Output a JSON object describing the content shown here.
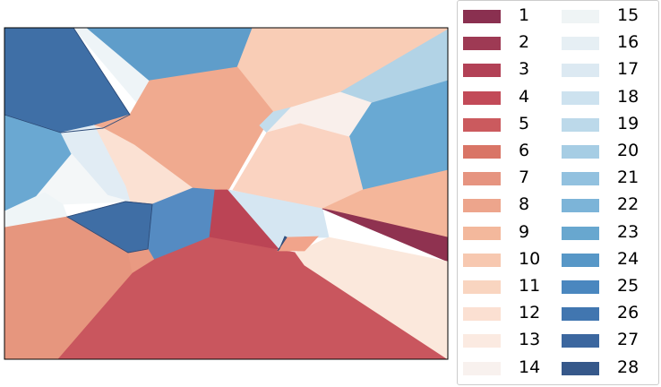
{
  "chart_data": {
    "type": "voronoi",
    "title": "",
    "xlabel": "",
    "ylabel": "",
    "grid": false,
    "axes_ticks": false,
    "legend": {
      "placement": "right",
      "columns": 2,
      "entries": [
        {
          "label": "1",
          "color": "#8a3050"
        },
        {
          "label": "2",
          "color": "#9e3a54"
        },
        {
          "label": "3",
          "color": "#b24156"
        },
        {
          "label": "4",
          "color": "#c24a58"
        },
        {
          "label": "5",
          "color": "#cb5a5e"
        },
        {
          "label": "6",
          "color": "#d97566"
        },
        {
          "label": "7",
          "color": "#e69480"
        },
        {
          "label": "8",
          "color": "#eda58c"
        },
        {
          "label": "9",
          "color": "#f3b89c"
        },
        {
          "label": "10",
          "color": "#f7c8b0"
        },
        {
          "label": "11",
          "color": "#f9d5c0"
        },
        {
          "label": "12",
          "color": "#fbe0d2"
        },
        {
          "label": "13",
          "color": "#fbeae1"
        },
        {
          "label": "14",
          "color": "#f8f1ee"
        },
        {
          "label": "15",
          "color": "#eff4f5"
        },
        {
          "label": "16",
          "color": "#e6eff4"
        },
        {
          "label": "17",
          "color": "#dce9f2"
        },
        {
          "label": "18",
          "color": "#cde2ef"
        },
        {
          "label": "19",
          "color": "#bcd9ea"
        },
        {
          "label": "20",
          "color": "#a6cde4"
        },
        {
          "label": "21",
          "color": "#92c1df"
        },
        {
          "label": "22",
          "color": "#7cb4d8"
        },
        {
          "label": "23",
          "color": "#68a7cf"
        },
        {
          "label": "24",
          "color": "#5797c7"
        },
        {
          "label": "25",
          "color": "#4a87bf"
        },
        {
          "label": "26",
          "color": "#4176b0"
        },
        {
          "label": "27",
          "color": "#3c679f"
        },
        {
          "label": "28",
          "color": "#36588a"
        }
      ]
    },
    "regions": [
      {
        "value": 27,
        "color": "#3f6fa6"
      },
      {
        "value": 16,
        "color": "#eef4f7"
      },
      {
        "value": 23,
        "color": "#5f9dca"
      },
      {
        "value": 11,
        "color": "#f9cdb6"
      },
      {
        "value": 19,
        "color": "#b2d3e6"
      },
      {
        "value": 8,
        "color": "#f0aa8f"
      },
      {
        "value": 24,
        "color": "#6aa8d2"
      },
      {
        "value": 19,
        "color": "#c2dcec"
      },
      {
        "value": 14,
        "color": "#f9efeb"
      },
      {
        "value": 24,
        "color": "#69a9d3"
      },
      {
        "value": 10,
        "color": "#fad3c1"
      },
      {
        "value": 13,
        "color": "#fbe1d3"
      },
      {
        "value": 17,
        "color": "#e1ecf4"
      },
      {
        "value": 20,
        "color": "#9fc8e2"
      },
      {
        "value": 15,
        "color": "#f4f7f8"
      },
      {
        "value": 16,
        "color": "#eff5f7"
      },
      {
        "value": 27,
        "color": "#3f6ea5"
      },
      {
        "value": 25,
        "color": "#558bc2"
      },
      {
        "value": 3,
        "color": "#bb4455"
      },
      {
        "value": 18,
        "color": "#d5e6f2"
      },
      {
        "value": 28,
        "color": "#36588a"
      },
      {
        "value": 9,
        "color": "#f4b69a"
      },
      {
        "value": 1,
        "color": "#8f3250"
      },
      {
        "value": 7,
        "color": "#e6967e"
      },
      {
        "value": 8,
        "color": "#e99a82"
      },
      {
        "value": 5,
        "color": "#c9565e"
      },
      {
        "value": 13,
        "color": "#fbe8dc"
      },
      {
        "value": 8,
        "color": "#f1a48b"
      }
    ]
  }
}
